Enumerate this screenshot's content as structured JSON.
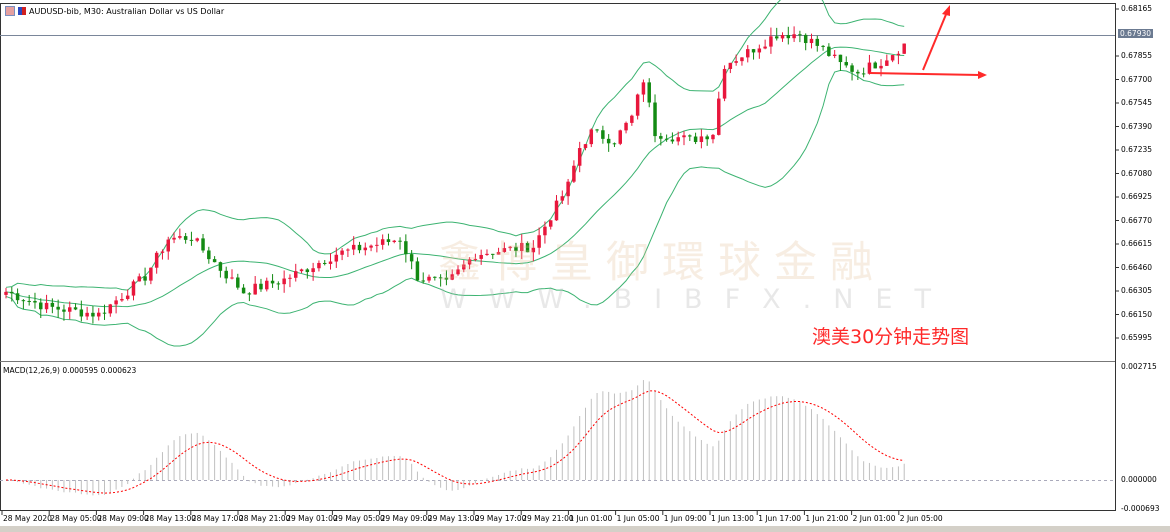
{
  "window": {
    "title": "AUDUSD-bib, M30:  Australian Dollar vs US Dollar"
  },
  "annotation": "澳美30分钟走势图",
  "watermark": {
    "line1": "鑫博皇御環球金融",
    "line2": "WWW.BIBFX.NET"
  },
  "colors": {
    "bull": "#e8173c",
    "bear": "#138a13",
    "bands": "#3cb371",
    "signal": "#ff0000",
    "histogram": "#c0c0c0",
    "arrow": "#ff2a2a"
  },
  "price_axis": [
    "0.68165",
    "0.67855",
    "0.67700",
    "0.67545",
    "0.67390",
    "0.67235",
    "0.67080",
    "0.66925",
    "0.66770",
    "0.66615",
    "0.66460",
    "0.66305",
    "0.66150",
    "0.65995"
  ],
  "current_price": "0.67930",
  "macd": {
    "label": "MACD(12,26,9) 0.000595 0.000623",
    "axis": [
      "0.002715",
      "0.000000",
      "-0.000693"
    ]
  },
  "time_axis": [
    "28 May 2020",
    "28 May 05:00",
    "28 May 09:00",
    "28 May 13:00",
    "28 May 17:00",
    "28 May 21:00",
    "29 May 01:00",
    "29 May 05:00",
    "29 May 09:00",
    "29 May 13:00",
    "29 May 17:00",
    "29 May 21:00",
    "1 Jun 01:00",
    "1 Jun 05:00",
    "1 Jun 09:00",
    "1 Jun 13:00",
    "1 Jun 17:00",
    "1 Jun 21:00",
    "2 Jun 01:00",
    "2 Jun 05:00"
  ],
  "chart_data": {
    "type": "candlestick",
    "timeframe": "M30",
    "ylim": [
      0.65995,
      0.68165
    ],
    "approx_close_path": [
      [
        "28 May 00:00",
        0.663
      ],
      [
        "28 May 03:30",
        0.662
      ],
      [
        "28 May 08:00",
        0.6615
      ],
      [
        "28 May 12:00",
        0.664
      ],
      [
        "28 May 14:00",
        0.6665
      ],
      [
        "28 May 16:00",
        0.6666
      ],
      [
        "28 May 18:30",
        0.6645
      ],
      [
        "28 May 20:30",
        0.663
      ],
      [
        "29 May 00:00",
        0.6638
      ],
      [
        "29 May 04:30",
        0.6655
      ],
      [
        "29 May 10:00",
        0.6665
      ],
      [
        "29 May 11:30",
        0.664
      ],
      [
        "29 May 14:00",
        0.6635
      ],
      [
        "29 May 16:30",
        0.6655
      ],
      [
        "29 May 21:30",
        0.666
      ],
      [
        "1 Jun 00:30",
        0.67
      ],
      [
        "1 Jun 01:30",
        0.6725
      ],
      [
        "1 Jun 02:30",
        0.6735
      ],
      [
        "1 Jun 04:30",
        0.673
      ],
      [
        "1 Jun 06:00",
        0.6745
      ],
      [
        "1 Jun 07:00",
        0.677
      ],
      [
        "1 Jun 08:00",
        0.6735
      ],
      [
        "1 Jun 11:00",
        0.673
      ],
      [
        "1 Jun 13:00",
        0.6735
      ],
      [
        "1 Jun 14:00",
        0.678
      ],
      [
        "1 Jun 16:00",
        0.6788
      ],
      [
        "1 Jun 18:30",
        0.68
      ],
      [
        "1 Jun 20:30",
        0.68
      ],
      [
        "1 Jun 22:30",
        0.679
      ],
      [
        "2 Jun 00:00",
        0.678
      ],
      [
        "2 Jun 01:30",
        0.6775
      ],
      [
        "2 Jun 03:30",
        0.6782
      ],
      [
        "2 Jun 05:30",
        0.6793
      ]
    ]
  }
}
